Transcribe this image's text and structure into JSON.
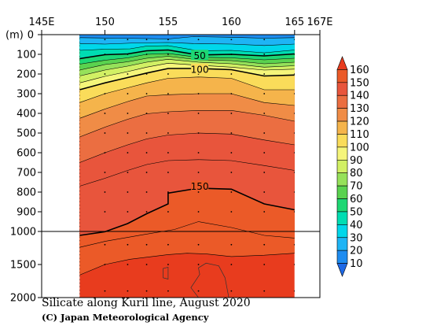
{
  "chart_data": {
    "type": "heatmap",
    "title": "Silicate along Kuril line, August 2020",
    "credit": "(C) Japan Meteorological Agency",
    "y_unit_label": "(m)",
    "x_ticks": [
      "145E",
      "150",
      "155",
      "160",
      "165",
      "167E"
    ],
    "x_tick_values": [
      145,
      150,
      155,
      160,
      165,
      167
    ],
    "xlim": [
      145,
      167
    ],
    "y_ticks": [
      "0",
      "100",
      "200",
      "300",
      "400",
      "500",
      "600",
      "700",
      "800",
      "900",
      "1000",
      "1500",
      "2000"
    ],
    "y_tick_values": [
      0,
      100,
      200,
      300,
      400,
      500,
      600,
      700,
      800,
      900,
      1000,
      1500,
      2000
    ],
    "ylim": [
      0,
      2000
    ],
    "y_scale": "piecewise linear: 0-1000 m and 1000-2000 m compressed",
    "data_extent_x": [
      148.0,
      165.0
    ],
    "colorbar_levels": [
      10,
      20,
      30,
      40,
      50,
      60,
      70,
      80,
      90,
      100,
      110,
      120,
      130,
      140,
      150,
      160
    ],
    "colorbar_tick_labels": [
      "10",
      "20",
      "30",
      "40",
      "50",
      "60",
      "70",
      "80",
      "90",
      "100",
      "110",
      "120",
      "130",
      "140",
      "150",
      "160"
    ],
    "colors": [
      "#1e69e6",
      "#1e8cf0",
      "#1eb4f5",
      "#00d7ea",
      "#00ddb2",
      "#1ed773",
      "#5ad24f",
      "#96e15a",
      "#d2f064",
      "#f5f57a",
      "#fadc5a",
      "#f5b44b",
      "#f08c46",
      "#eb6e41",
      "#e8553c",
      "#eb5a28",
      "#e83c1e"
    ],
    "labeled_contours": [
      {
        "value": 50,
        "label": "50",
        "at_lon": 157.5,
        "at_depth": 105
      },
      {
        "value": 100,
        "label": "100",
        "at_lon": 157.5,
        "at_depth": 175
      },
      {
        "value": 150,
        "label": "150",
        "at_lon": 157.5,
        "at_depth": 770
      }
    ],
    "reference_line_depth": 1000,
    "stations_lon": [
      148.0,
      150.0,
      151.8,
      153.3,
      155.0,
      157.4,
      160.0,
      162.6,
      165.0
    ],
    "contours": [
      {
        "value": 20,
        "thick": false,
        "points": [
          [
            148.0,
            15
          ],
          [
            151.0,
            18
          ],
          [
            153.5,
            20
          ],
          [
            155.0,
            22
          ],
          [
            157.0,
            10
          ],
          [
            160.0,
            13
          ],
          [
            162.6,
            18
          ],
          [
            165.0,
            15
          ]
        ]
      },
      {
        "value": 30,
        "thick": false,
        "points": [
          [
            148.0,
            45
          ],
          [
            150.0,
            48
          ],
          [
            152.5,
            42
          ],
          [
            155.0,
            40
          ],
          [
            157.0,
            45
          ],
          [
            160.0,
            48
          ],
          [
            162.6,
            55
          ],
          [
            165.0,
            48
          ]
        ]
      },
      {
        "value": 40,
        "thick": false,
        "points": [
          [
            148.0,
            80
          ],
          [
            150.0,
            74
          ],
          [
            152.0,
            72
          ],
          [
            153.3,
            58
          ],
          [
            155.0,
            56
          ],
          [
            157.4,
            82
          ],
          [
            160.0,
            80
          ],
          [
            162.6,
            92
          ],
          [
            165.0,
            78
          ]
        ]
      },
      {
        "value": 50,
        "thick": true,
        "points": [
          [
            148.0,
            122
          ],
          [
            150.0,
            102
          ],
          [
            151.8,
            98
          ],
          [
            153.3,
            82
          ],
          [
            155.0,
            78
          ],
          [
            157.4,
            103
          ],
          [
            160.0,
            100
          ],
          [
            162.6,
            108
          ],
          [
            165.0,
            98
          ]
        ]
      },
      {
        "value": 60,
        "thick": false,
        "points": [
          [
            148.0,
            150
          ],
          [
            150.0,
            130
          ],
          [
            151.8,
            118
          ],
          [
            153.3,
            100
          ],
          [
            155.0,
            96
          ],
          [
            157.4,
            115
          ],
          [
            160.0,
            118
          ],
          [
            162.6,
            128
          ],
          [
            165.0,
            120
          ]
        ]
      },
      {
        "value": 70,
        "thick": false,
        "points": [
          [
            148.0,
            180
          ],
          [
            150.0,
            152
          ],
          [
            151.8,
            138
          ],
          [
            153.3,
            120
          ],
          [
            155.0,
            110
          ],
          [
            157.4,
            128
          ],
          [
            160.0,
            132
          ],
          [
            162.6,
            148
          ],
          [
            165.0,
            140
          ]
        ]
      },
      {
        "value": 80,
        "thick": false,
        "points": [
          [
            148.0,
            210
          ],
          [
            150.0,
            180
          ],
          [
            151.8,
            160
          ],
          [
            153.3,
            140
          ],
          [
            155.0,
            125
          ],
          [
            157.4,
            140
          ],
          [
            160.0,
            148
          ],
          [
            162.6,
            165
          ],
          [
            165.0,
            158
          ]
        ]
      },
      {
        "value": 90,
        "thick": false,
        "points": [
          [
            148.0,
            245
          ],
          [
            150.0,
            212
          ],
          [
            151.8,
            188
          ],
          [
            153.3,
            165
          ],
          [
            155.0,
            145
          ],
          [
            157.4,
            155
          ],
          [
            160.0,
            165
          ],
          [
            162.6,
            180
          ],
          [
            165.0,
            175
          ]
        ]
      },
      {
        "value": 100,
        "thick": true,
        "points": [
          [
            148.0,
            280
          ],
          [
            150.0,
            245
          ],
          [
            151.8,
            218
          ],
          [
            153.3,
            195
          ],
          [
            155.0,
            172
          ],
          [
            157.4,
            172
          ],
          [
            160.0,
            178
          ],
          [
            162.6,
            210
          ],
          [
            165.0,
            205
          ]
        ]
      },
      {
        "value": 110,
        "thick": false,
        "points": [
          [
            148.0,
            345
          ],
          [
            150.0,
            300
          ],
          [
            151.8,
            270
          ],
          [
            153.3,
            245
          ],
          [
            155.0,
            222
          ],
          [
            157.4,
            215
          ],
          [
            160.0,
            222
          ],
          [
            162.6,
            280
          ],
          [
            165.0,
            280
          ]
        ]
      },
      {
        "value": 120,
        "thick": false,
        "points": [
          [
            148.0,
            425
          ],
          [
            150.0,
            378
          ],
          [
            151.8,
            340
          ],
          [
            153.3,
            312
          ],
          [
            155.0,
            305
          ],
          [
            157.4,
            300
          ],
          [
            160.0,
            300
          ],
          [
            162.6,
            345
          ],
          [
            165.0,
            360
          ]
        ]
      },
      {
        "value": 130,
        "thick": false,
        "points": [
          [
            148.0,
            520
          ],
          [
            150.0,
            470
          ],
          [
            151.8,
            430
          ],
          [
            153.3,
            402
          ],
          [
            155.0,
            392
          ],
          [
            157.4,
            385
          ],
          [
            160.0,
            385
          ],
          [
            162.6,
            410
          ],
          [
            165.0,
            440
          ]
        ]
      },
      {
        "value": 140,
        "thick": false,
        "points": [
          [
            148.0,
            650
          ],
          [
            150.0,
            600
          ],
          [
            151.8,
            560
          ],
          [
            153.3,
            530
          ],
          [
            155.0,
            510
          ],
          [
            157.4,
            500
          ],
          [
            160.0,
            505
          ],
          [
            162.6,
            535
          ],
          [
            165.0,
            560
          ]
        ]
      },
      {
        "value": 145,
        "thick": false,
        "points": [
          [
            148.0,
            770
          ],
          [
            150.0,
            730
          ],
          [
            151.8,
            690
          ],
          [
            153.3,
            660
          ],
          [
            155.0,
            640
          ],
          [
            157.4,
            635
          ],
          [
            160.0,
            640
          ],
          [
            162.6,
            665
          ],
          [
            165.0,
            690
          ]
        ]
      },
      {
        "value": 150,
        "thick": true,
        "points": [
          [
            148.0,
            1060
          ],
          [
            150.0,
            1005
          ],
          [
            151.8,
            960
          ],
          [
            153.3,
            910
          ],
          [
            155.0,
            860
          ],
          [
            155.0,
            805
          ],
          [
            157.4,
            780
          ],
          [
            160.0,
            785
          ],
          [
            162.6,
            860
          ],
          [
            165.0,
            890
          ]
        ]
      },
      {
        "value": 155,
        "thick": false,
        "points": [
          [
            148.0,
            1240
          ],
          [
            150.0,
            1150
          ],
          [
            153.0,
            1050
          ],
          [
            155.5,
            990
          ],
          [
            157.4,
            950
          ],
          [
            160.0,
            980
          ],
          [
            162.6,
            1060
          ],
          [
            165.0,
            1100
          ]
        ]
      },
      {
        "value": 160,
        "thick": false,
        "points": [
          [
            148.0,
            1660
          ],
          [
            150.0,
            1500
          ],
          [
            152.0,
            1420
          ],
          [
            155.0,
            1350
          ],
          [
            156.5,
            1330
          ],
          [
            158.0,
            1340
          ],
          [
            160.0,
            1380
          ],
          [
            162.6,
            1360
          ],
          [
            165.0,
            1330
          ]
        ]
      }
    ],
    "closed_contours": [
      {
        "value": 160,
        "points": [
          [
            155.0,
            1720
          ],
          [
            154.6,
            1700
          ],
          [
            154.6,
            1560
          ],
          [
            155.0,
            1540
          ]
        ]
      },
      {
        "value": 165,
        "points": [
          [
            157.4,
            2000
          ],
          [
            156.8,
            1850
          ],
          [
            157.5,
            1650
          ],
          [
            157.4,
            1550
          ],
          [
            158.0,
            1480
          ],
          [
            159.0,
            1520
          ],
          [
            159.5,
            1700
          ],
          [
            159.8,
            2000
          ]
        ]
      }
    ]
  }
}
